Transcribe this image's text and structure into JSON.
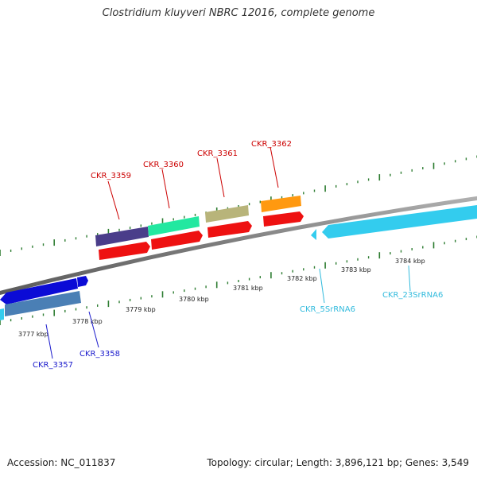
{
  "title": "Clostridium kluyveri NBRC 12016, complete genome",
  "footer": {
    "accession": "Accession: NC_011837",
    "summary": "Topology: circular; Length: 3,896,121 bp; Genes: 3,549"
  },
  "colors": {
    "backbone": "#8a8a8a",
    "tick": "#2e7d32",
    "red_label": "#cc0000",
    "blue_label": "#1a1acc",
    "cyan_label": "#33bbdd"
  },
  "tick_labels": [
    "3777 kbp",
    "3778 kbp",
    "3779 kbp",
    "3780 kbp",
    "3781 kbp",
    "3782 kbp",
    "3783 kbp",
    "3784 kbp"
  ],
  "genes": [
    {
      "name": "CKR_3357",
      "color": "#0b0bd6",
      "label_color": "#1a1acc",
      "strand": "-",
      "track": "inner-upper"
    },
    {
      "name": "CKR_3358",
      "color": "#4a7fb5",
      "label_color": "#1a1acc",
      "strand": "+",
      "track": "inner-lower"
    },
    {
      "name": "CKR_3359",
      "color": "#4a3d8a",
      "label_color": "#cc0000",
      "strand": "+",
      "track": "outer"
    },
    {
      "name": "CKR_3360",
      "color": "#22e8a0",
      "label_color": "#cc0000",
      "strand": "+",
      "track": "outer"
    },
    {
      "name": "CKR_3361",
      "color": "#b8b47a",
      "label_color": "#cc0000",
      "strand": "+",
      "track": "outer"
    },
    {
      "name": "CKR_3362",
      "color": "#ff9910",
      "label_color": "#cc0000",
      "strand": "+",
      "track": "outer"
    },
    {
      "name": "CKR_5SrRNA6",
      "color": "#33ccee",
      "label_color": "#33bbdd",
      "strand": "-",
      "track": "inner"
    },
    {
      "name": "CKR_23SrRNA6",
      "color": "#33ccee",
      "label_color": "#33bbdd",
      "strand": "-",
      "track": "inner"
    }
  ],
  "cds_color": "#ee1111"
}
